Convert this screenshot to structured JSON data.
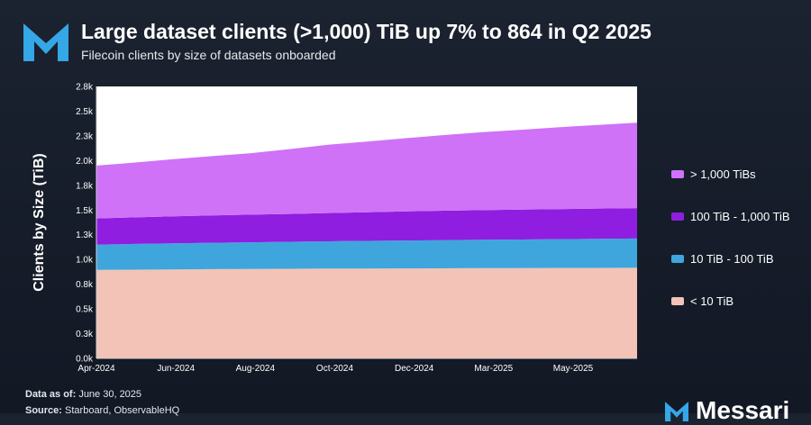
{
  "header": {
    "logo_icon": "messari-m-logo-icon",
    "title": "Large dataset clients (>1,000) TiB up 7% to 864 in Q2 2025",
    "subtitle": "Filecoin clients by size of datasets onboarded"
  },
  "footer": {
    "date_label": "Data as of:",
    "date_value": "June 30, 2025",
    "source_label": "Source:",
    "source_value": "Starboard, ObservableHQ",
    "brand_icon": "messari-m-logo-icon",
    "brand_name": "Messari"
  },
  "colors": {
    "lt10": "#f2c3b6",
    "10to100": "#3ea6dc",
    "100to1000": "#8f1ee0",
    "gt1000": "#cf72f7",
    "plot_bg": "#ffffff",
    "logo_blue": "#35a6e6"
  },
  "chart_data": {
    "type": "area",
    "stacked": true,
    "title": "Large dataset clients (>1,000) TiB up 7% to 864 in Q2 2025",
    "subtitle": "Filecoin clients by size of datasets onboarded",
    "ylabel": "Clients by Size (TiB)",
    "xlabel": "",
    "x_tick_labels": [
      "Apr-2024",
      "Jun-2024",
      "Aug-2024",
      "Oct-2024",
      "Dec-2024",
      "Mar-2025",
      "May-2025"
    ],
    "y_ticks": [
      0,
      250,
      500,
      750,
      1000,
      1250,
      1500,
      1750,
      2000,
      2250,
      2500,
      2750
    ],
    "y_tick_labels": [
      "0.0k",
      "0.3k",
      "0.5k",
      "0.8k",
      "1.0k",
      "1.3k",
      "1.5k",
      "1.8k",
      "2.0k",
      "2.3k",
      "2.5k",
      "2.8k"
    ],
    "ylim": [
      0,
      2750
    ],
    "x": [
      "2024-04",
      "2024-05",
      "2024-06",
      "2024-07",
      "2024-08",
      "2024-09",
      "2024-10",
      "2024-11",
      "2024-12",
      "2025-01",
      "2025-02",
      "2025-03",
      "2025-04",
      "2025-05",
      "2025-06"
    ],
    "series": [
      {
        "name": "< 10 TiB",
        "color_key": "lt10",
        "values": [
          895,
          897,
          900,
          902,
          904,
          906,
          908,
          909,
          910,
          911,
          912,
          913,
          914,
          915,
          916
        ]
      },
      {
        "name": "10 TiB - 100 TiB",
        "color_key": "10to100",
        "values": [
          255,
          260,
          264,
          267,
          270,
          273,
          276,
          279,
          282,
          285,
          287,
          289,
          292,
          294,
          296
        ]
      },
      {
        "name": "100 TiB - 1,000 TiB",
        "color_key": "100to1000",
        "values": [
          265,
          269,
          273,
          276,
          279,
          282,
          286,
          290,
          294,
          297,
          300,
          302,
          304,
          306,
          308
        ]
      },
      {
        "name": "> 1,000 TiBs",
        "color_key": "gt1000",
        "values": [
          535,
          555,
          578,
          600,
          622,
          655,
          690,
          715,
          740,
          765,
          788,
          808,
          828,
          846,
          864
        ]
      }
    ],
    "legend": {
      "position": "right",
      "order": [
        "> 1,000 TiBs",
        "100 TiB - 1,000 TiB",
        "10 TiB - 100 TiB",
        "< 10 TiB"
      ]
    },
    "grid": false
  }
}
